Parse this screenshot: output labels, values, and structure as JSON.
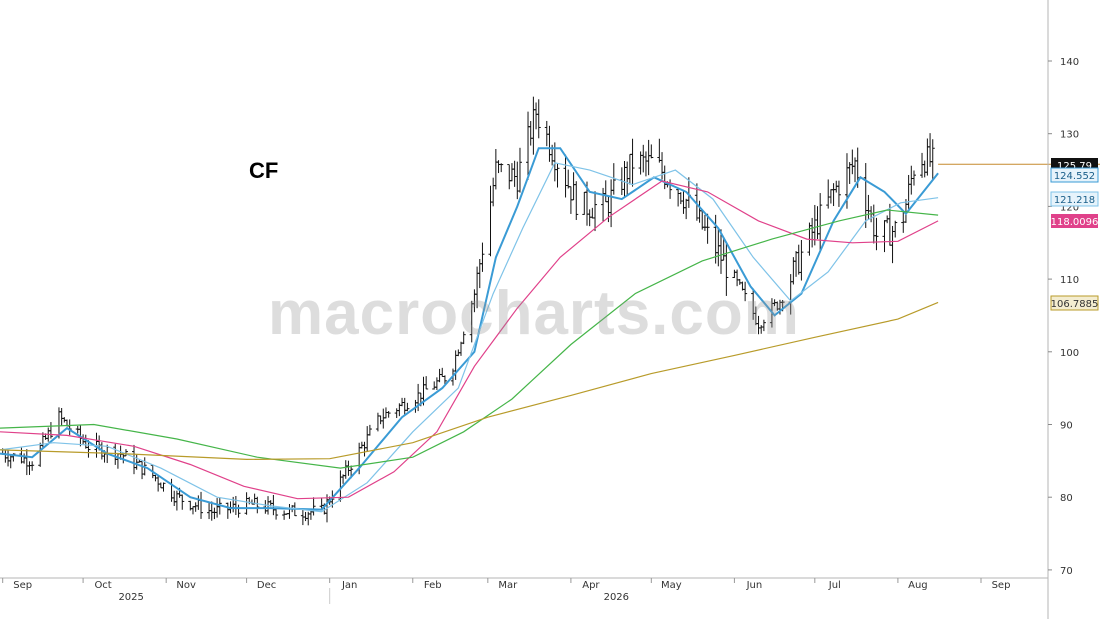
{
  "chart_data": {
    "type": "line",
    "title": "CF",
    "watermark": "macrocharts.com",
    "y_axis": {
      "min": 70,
      "max": 145,
      "ticks": [
        70,
        80,
        90,
        100,
        110,
        120,
        130,
        140
      ],
      "position": "right"
    },
    "x_axis": {
      "range": [
        "2025-08-31",
        "2026-09-26"
      ],
      "months": [
        {
          "label": "Sep",
          "date": "2025-09-01"
        },
        {
          "label": "Oct",
          "date": "2025-10-01"
        },
        {
          "label": "Nov",
          "date": "2025-11-01"
        },
        {
          "label": "Dec",
          "date": "2025-12-01"
        },
        {
          "label": "Jan",
          "date": "2026-01-01"
        },
        {
          "label": "Feb",
          "date": "2026-02-01"
        },
        {
          "label": "Mar",
          "date": "2026-03-01"
        },
        {
          "label": "Apr",
          "date": "2026-04-01"
        },
        {
          "label": "May",
          "date": "2026-05-01"
        },
        {
          "label": "Jun",
          "date": "2026-06-01"
        },
        {
          "label": "Jul",
          "date": "2026-07-01"
        },
        {
          "label": "Aug",
          "date": "2026-08-01"
        },
        {
          "label": "Sep",
          "date": "2026-09-01"
        }
      ],
      "years": [
        {
          "label": "2025",
          "date": "2025-11-01"
        },
        {
          "label": "2026",
          "date": "2026-05-01"
        }
      ]
    },
    "price_anchors": [
      [
        "2025-09-01",
        86
      ],
      [
        "2025-09-12",
        85
      ],
      [
        "2025-09-22",
        91
      ],
      [
        "2025-10-03",
        87
      ],
      [
        "2025-10-15",
        86
      ],
      [
        "2025-10-27",
        83
      ],
      [
        "2025-11-05",
        80
      ],
      [
        "2025-11-18",
        78
      ],
      [
        "2025-12-03",
        79
      ],
      [
        "2025-12-17",
        78
      ],
      [
        "2025-12-29",
        78
      ],
      [
        "2026-01-08",
        84
      ],
      [
        "2026-01-20",
        91
      ],
      [
        "2026-02-03",
        94
      ],
      [
        "2026-02-15",
        97
      ],
      [
        "2026-02-24",
        108
      ],
      [
        "2026-03-04",
        125
      ],
      [
        "2026-03-12",
        124
      ],
      [
        "2026-03-19",
        133
      ],
      [
        "2026-03-26",
        127
      ],
      [
        "2026-04-04",
        120
      ],
      [
        "2026-04-14",
        120
      ],
      [
        "2026-04-24",
        126
      ],
      [
        "2026-05-02",
        126
      ],
      [
        "2026-05-12",
        122
      ],
      [
        "2026-05-22",
        116
      ],
      [
        "2026-06-01",
        110
      ],
      [
        "2026-06-10",
        104
      ],
      [
        "2026-06-18",
        107
      ],
      [
        "2026-06-28",
        115
      ],
      [
        "2026-07-08",
        122
      ],
      [
        "2026-07-16",
        126
      ],
      [
        "2026-07-24",
        116
      ],
      [
        "2026-08-02",
        117
      ],
      [
        "2026-08-08",
        127
      ],
      [
        "2026-08-16",
        125.79
      ]
    ],
    "series": [
      {
        "name": "",
        "color": "#3a9bd5",
        "points": [
          [
            "2025-08-31",
            86
          ],
          [
            "2025-09-12",
            85.5
          ],
          [
            "2025-09-25",
            89.5
          ],
          [
            "2025-10-10",
            86
          ],
          [
            "2025-10-25",
            84
          ],
          [
            "2025-11-10",
            80
          ],
          [
            "2025-11-25",
            78.5
          ],
          [
            "2025-12-10",
            78.5
          ],
          [
            "2025-12-29",
            78.3
          ],
          [
            "2026-01-12",
            84
          ],
          [
            "2026-01-28",
            91
          ],
          [
            "2026-02-12",
            95
          ],
          [
            "2026-02-24",
            100
          ],
          [
            "2026-03-04",
            113
          ],
          [
            "2026-03-12",
            120
          ],
          [
            "2026-03-20",
            128
          ],
          [
            "2026-03-28",
            128
          ],
          [
            "2026-04-08",
            122
          ],
          [
            "2026-04-20",
            121
          ],
          [
            "2026-05-02",
            124
          ],
          [
            "2026-05-14",
            122
          ],
          [
            "2026-05-26",
            117
          ],
          [
            "2026-06-07",
            109
          ],
          [
            "2026-06-16",
            105
          ],
          [
            "2026-06-26",
            108
          ],
          [
            "2026-07-08",
            118
          ],
          [
            "2026-07-18",
            124
          ],
          [
            "2026-07-27",
            122
          ],
          [
            "2026-08-04",
            119
          ],
          [
            "2026-08-16",
            124.55
          ]
        ]
      },
      {
        "name": "",
        "color": "#7fc3e8",
        "points": [
          [
            "2025-08-31",
            86.5
          ],
          [
            "2025-09-20",
            87.5
          ],
          [
            "2025-10-10",
            87
          ],
          [
            "2025-10-30",
            84
          ],
          [
            "2025-11-20",
            80
          ],
          [
            "2025-12-10",
            78.8
          ],
          [
            "2025-12-29",
            78
          ],
          [
            "2026-01-15",
            82
          ],
          [
            "2026-02-01",
            89
          ],
          [
            "2026-02-18",
            95
          ],
          [
            "2026-03-03",
            108
          ],
          [
            "2026-03-14",
            117
          ],
          [
            "2026-03-26",
            126
          ],
          [
            "2026-04-08",
            125
          ],
          [
            "2026-04-24",
            123
          ],
          [
            "2026-05-10",
            125
          ],
          [
            "2026-05-24",
            121
          ],
          [
            "2026-06-08",
            113
          ],
          [
            "2026-06-22",
            107
          ],
          [
            "2026-07-06",
            111
          ],
          [
            "2026-07-20",
            118
          ],
          [
            "2026-08-02",
            120.5
          ],
          [
            "2026-08-16",
            121.2
          ]
        ]
      },
      {
        "name": "",
        "color": "#e0418a",
        "points": [
          [
            "2025-08-31",
            89
          ],
          [
            "2025-09-25",
            88.5
          ],
          [
            "2025-10-20",
            87
          ],
          [
            "2025-11-10",
            84.5
          ],
          [
            "2025-11-30",
            81.5
          ],
          [
            "2025-12-20",
            79.8
          ],
          [
            "2026-01-08",
            80
          ],
          [
            "2026-01-25",
            83.5
          ],
          [
            "2026-02-10",
            89
          ],
          [
            "2026-02-24",
            98
          ],
          [
            "2026-03-12",
            106
          ],
          [
            "2026-03-28",
            113
          ],
          [
            "2026-04-15",
            118.5
          ],
          [
            "2026-05-05",
            123.5
          ],
          [
            "2026-05-22",
            122
          ],
          [
            "2026-06-10",
            118
          ],
          [
            "2026-06-28",
            115.5
          ],
          [
            "2026-07-15",
            115
          ],
          [
            "2026-08-01",
            115.2
          ],
          [
            "2026-08-16",
            118.01
          ]
        ]
      },
      {
        "name": "",
        "color": "#45b549",
        "points": [
          [
            "2025-08-31",
            89.5
          ],
          [
            "2025-10-05",
            90
          ],
          [
            "2025-11-05",
            88
          ],
          [
            "2025-12-05",
            85.5
          ],
          [
            "2026-01-05",
            84
          ],
          [
            "2026-02-01",
            85.5
          ],
          [
            "2026-02-20",
            89
          ],
          [
            "2026-03-10",
            93.5
          ],
          [
            "2026-04-01",
            101
          ],
          [
            "2026-04-25",
            108
          ],
          [
            "2026-05-20",
            112.5
          ],
          [
            "2026-06-15",
            115.5
          ],
          [
            "2026-07-10",
            118
          ],
          [
            "2026-07-28",
            119.5
          ],
          [
            "2026-08-16",
            118.8
          ]
        ]
      },
      {
        "name": "",
        "color": "#b89b2a",
        "points": [
          [
            "2025-08-31",
            86.5
          ],
          [
            "2025-10-15",
            86
          ],
          [
            "2025-12-01",
            85.2
          ],
          [
            "2026-01-01",
            85.3
          ],
          [
            "2026-02-01",
            87.5
          ],
          [
            "2026-03-01",
            91
          ],
          [
            "2026-04-01",
            94
          ],
          [
            "2026-05-01",
            97
          ],
          [
            "2026-06-01",
            99.5
          ],
          [
            "2026-07-01",
            102
          ],
          [
            "2026-08-01",
            104.5
          ],
          [
            "2026-08-16",
            106.79
          ]
        ]
      }
    ],
    "last_price_line": {
      "value": 125.79,
      "color": "#c58a2e"
    },
    "value_badges": [
      {
        "label": "125.79",
        "value": 125.79,
        "bg": "#111111",
        "fg": "#ffffff"
      },
      {
        "label": "124.552",
        "value": 124.552,
        "bg": "#e6f3fb",
        "fg": "#1a5f8a",
        "border": "#3a9bd5"
      },
      {
        "label": "121.218",
        "value": 121.218,
        "bg": "#e6f3fb",
        "fg": "#1a5f8a",
        "border": "#7fc3e8"
      },
      {
        "label": "118.0096",
        "value": 118.0096,
        "bg": "#e0418a",
        "fg": "#ffffff"
      },
      {
        "label": "106.7885",
        "value": 106.7885,
        "bg": "#f4edd0",
        "fg": "#333333",
        "border": "#b89b2a"
      }
    ]
  }
}
